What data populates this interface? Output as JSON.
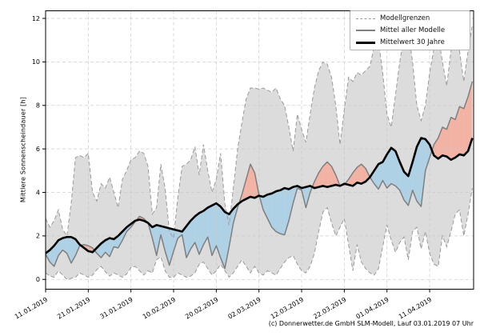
{
  "figure": {
    "y_axis_label": "Mittlere Sonnenscheindauer [h]",
    "footer_credit": "(c) Donnerwetter.de GmbH SLM-Modell, Lauf 03.01.2019 07 Uhr",
    "legend": {
      "position": "upper right",
      "items": [
        {
          "label": "Modellgrenzen",
          "line_style": "dashed",
          "color": "#999999"
        },
        {
          "label": "Mittel aller Modelle",
          "line_style": "solid",
          "color": "#808080"
        },
        {
          "label": "Mittelwert 30 Jahre",
          "line_style": "solid-thick",
          "color": "#000000"
        }
      ]
    },
    "colors": {
      "band_fill": "#dcdcdc",
      "band_edge": "#9a9a9a",
      "above_normal_fill": "#f2b3a4",
      "below_normal_fill": "#aed1e6",
      "model_mean_line": "#7f7f7f",
      "climate_mean_line": "#000000",
      "grid": "#c9c9c9"
    }
  },
  "chart_data": {
    "type": "line",
    "title": "",
    "xlabel": "",
    "ylabel": "Mittlere Sonnenscheindauer [h]",
    "x_start_date": "11.01.2019",
    "x_unit": "day offset from 11.01.2019",
    "x_tick_days": [
      0,
      10,
      20,
      30,
      40,
      50,
      60,
      70,
      80,
      90
    ],
    "x_tick_labels": [
      "11.01.2019",
      "21.01.2019",
      "31.01.2019",
      "10.02.2019",
      "20.02.2019",
      "02.03.2019",
      "12.03.2019",
      "22.03.2019",
      "01.04.2019",
      "11.04.2019"
    ],
    "y_ticks": [
      0,
      2,
      4,
      6,
      8,
      10,
      12
    ],
    "ylim": [
      -0.45,
      12.35
    ],
    "xlim_days": [
      0,
      100.3
    ],
    "grid": true,
    "legend_position": "upper right",
    "fill_meaning": {
      "gray_band": "Modellgrenzen (min/max aller Modelle)",
      "red": "Mittel aller Modelle ueber Mittelwert 30 Jahre",
      "blue": "Mittel aller Modelle unter Mittelwert 30 Jahre"
    },
    "series": [
      {
        "name": "Modellgrenzen oben",
        "style": "dashed",
        "values": [
          2.8,
          2.4,
          2.7,
          3.2,
          2.3,
          2.0,
          3.5,
          5.6,
          5.7,
          5.6,
          5.8,
          4.0,
          3.6,
          4.4,
          4.2,
          4.7,
          4.0,
          3.3,
          4.6,
          5.0,
          5.5,
          5.6,
          5.9,
          5.8,
          5.2,
          3.0,
          3.3,
          5.3,
          4.2,
          2.2,
          1.9,
          3.8,
          5.2,
          5.3,
          5.5,
          6.1,
          4.8,
          6.2,
          5.0,
          4.0,
          4.6,
          5.8,
          3.5,
          2.5,
          4.2,
          6.0,
          7.2,
          8.3,
          8.8,
          8.8,
          8.75,
          8.8,
          8.7,
          8.6,
          8.8,
          8.3,
          8.0,
          7.0,
          5.9,
          7.6,
          6.9,
          6.3,
          7.6,
          8.8,
          9.6,
          10.0,
          9.9,
          9.3,
          8.0,
          6.2,
          7.8,
          9.3,
          9.1,
          9.5,
          9.4,
          9.6,
          9.8,
          10.7,
          11.0,
          9.5,
          7.6,
          7.0,
          8.5,
          10.0,
          11.2,
          11.4,
          10.0,
          8.0,
          7.3,
          8.0,
          9.5,
          10.6,
          11.2,
          10.0,
          8.9,
          10.5,
          11.8,
          10.5,
          9.1,
          10.5,
          11.7
        ]
      },
      {
        "name": "Modellgrenzen unten",
        "style": "dashed",
        "values": [
          0.3,
          0.15,
          0.1,
          0.4,
          0.2,
          0.0,
          0.05,
          0.1,
          0.3,
          0.2,
          0.1,
          0.2,
          0.45,
          0.6,
          0.35,
          0.15,
          0.3,
          0.2,
          0.1,
          0.25,
          0.55,
          0.6,
          0.4,
          0.2,
          0.4,
          0.3,
          0.9,
          1.05,
          0.4,
          0.1,
          0.1,
          0.3,
          0.2,
          0.1,
          0.15,
          0.3,
          0.7,
          0.8,
          0.5,
          0.2,
          0.4,
          0.7,
          0.4,
          0.1,
          0.3,
          0.6,
          0.9,
          0.6,
          0.3,
          0.6,
          0.3,
          0.2,
          0.4,
          0.3,
          0.2,
          0.5,
          0.8,
          1.0,
          1.1,
          0.7,
          0.4,
          0.3,
          0.6,
          1.2,
          2.2,
          3.1,
          3.3,
          2.6,
          2.0,
          2.4,
          2.8,
          1.6,
          0.4,
          1.6,
          0.8,
          0.5,
          0.3,
          0.2,
          0.5,
          1.5,
          2.5,
          1.8,
          1.25,
          1.7,
          1.95,
          0.9,
          2.2,
          2.4,
          1.4,
          2.2,
          1.2,
          0.7,
          0.6,
          2.0,
          1.5,
          2.2,
          3.0,
          3.2,
          2.0,
          3.0,
          4.2
        ]
      },
      {
        "name": "Mittel aller Modelle",
        "style": "solid-gray",
        "values": [
          1.15,
          0.8,
          0.6,
          1.1,
          1.35,
          1.2,
          0.75,
          1.1,
          1.55,
          1.6,
          1.55,
          1.45,
          1.2,
          1.0,
          1.25,
          1.05,
          1.5,
          1.45,
          1.8,
          2.2,
          2.4,
          2.65,
          2.9,
          2.8,
          2.6,
          1.9,
          1.1,
          2.05,
          1.3,
          0.65,
          1.3,
          1.9,
          2.05,
          1.0,
          1.4,
          1.7,
          1.15,
          1.6,
          1.95,
          1.1,
          1.55,
          1.0,
          0.5,
          1.5,
          2.6,
          3.3,
          3.9,
          4.6,
          5.3,
          4.9,
          3.9,
          3.2,
          2.8,
          2.4,
          2.2,
          2.1,
          2.05,
          2.7,
          3.5,
          4.2,
          4.1,
          3.3,
          4.0,
          4.5,
          4.9,
          5.2,
          5.4,
          5.2,
          4.8,
          4.3,
          4.35,
          4.6,
          4.9,
          5.15,
          5.3,
          5.1,
          4.7,
          4.4,
          4.15,
          4.55,
          4.2,
          4.4,
          4.3,
          4.1,
          3.65,
          3.4,
          4.1,
          3.6,
          3.35,
          5.0,
          5.6,
          6.2,
          6.5,
          7.0,
          6.9,
          7.45,
          7.35,
          7.95,
          7.85,
          8.4,
          9.1
        ]
      },
      {
        "name": "Mittelwert 30 Jahre",
        "style": "solid-black-thick",
        "values": [
          1.2,
          1.35,
          1.55,
          1.8,
          1.9,
          1.95,
          1.95,
          1.85,
          1.6,
          1.45,
          1.3,
          1.25,
          1.45,
          1.65,
          1.8,
          1.9,
          1.85,
          2.0,
          2.2,
          2.4,
          2.55,
          2.7,
          2.75,
          2.7,
          2.6,
          2.4,
          2.5,
          2.45,
          2.4,
          2.35,
          2.3,
          2.25,
          2.2,
          2.45,
          2.7,
          2.9,
          3.05,
          3.15,
          3.3,
          3.4,
          3.5,
          3.35,
          3.1,
          3.0,
          3.25,
          3.45,
          3.6,
          3.7,
          3.8,
          3.75,
          3.85,
          3.8,
          3.9,
          3.95,
          4.05,
          4.1,
          4.2,
          4.15,
          4.25,
          4.3,
          4.2,
          4.25,
          4.3,
          4.2,
          4.25,
          4.3,
          4.25,
          4.3,
          4.35,
          4.3,
          4.4,
          4.35,
          4.3,
          4.45,
          4.4,
          4.5,
          4.7,
          5.0,
          5.3,
          5.4,
          5.75,
          6.05,
          5.9,
          5.4,
          4.95,
          4.75,
          5.4,
          6.1,
          6.5,
          6.45,
          6.2,
          5.7,
          5.55,
          5.7,
          5.65,
          5.5,
          5.6,
          5.75,
          5.7,
          5.9,
          6.5
        ]
      }
    ]
  }
}
